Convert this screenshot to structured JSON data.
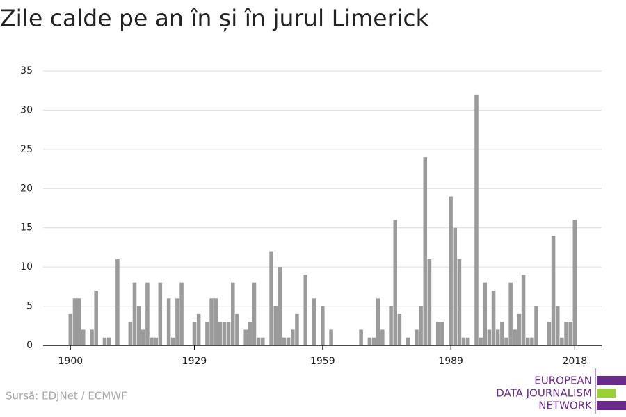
{
  "chart_data": {
    "type": "bar",
    "title": "Zile calde pe an în și în jurul Limerick",
    "source": "Sursă: EDJNet / ECMWF",
    "logo": [
      "EUROPEAN",
      "DATA JOURNALISM",
      "NETWORK"
    ],
    "color": "#9b9b9b",
    "grid": true,
    "x": [
      1900,
      1901,
      1902,
      1903,
      1904,
      1905,
      1906,
      1907,
      1908,
      1909,
      1910,
      1911,
      1912,
      1913,
      1914,
      1915,
      1916,
      1917,
      1918,
      1919,
      1920,
      1921,
      1922,
      1923,
      1924,
      1925,
      1926,
      1927,
      1928,
      1929,
      1930,
      1931,
      1932,
      1933,
      1934,
      1935,
      1936,
      1937,
      1938,
      1939,
      1940,
      1941,
      1942,
      1943,
      1944,
      1945,
      1946,
      1947,
      1948,
      1949,
      1950,
      1951,
      1952,
      1953,
      1954,
      1955,
      1956,
      1957,
      1958,
      1959,
      1960,
      1961,
      1962,
      1963,
      1964,
      1965,
      1966,
      1967,
      1968,
      1969,
      1970,
      1971,
      1972,
      1973,
      1974,
      1975,
      1976,
      1977,
      1978,
      1979,
      1980,
      1981,
      1982,
      1983,
      1984,
      1985,
      1986,
      1987,
      1988,
      1989,
      1990,
      1991,
      1992,
      1993,
      1994,
      1995,
      1996,
      1997,
      1998,
      1999,
      2000,
      2001,
      2002,
      2003,
      2004,
      2005,
      2006,
      2007,
      2008,
      2009,
      2010,
      2011,
      2012,
      2013,
      2014,
      2015,
      2016,
      2017,
      2018
    ],
    "values": [
      4,
      6,
      6,
      2,
      0,
      2,
      7,
      0,
      1,
      1,
      0,
      11,
      0,
      0,
      3,
      8,
      5,
      2,
      8,
      1,
      1,
      8,
      0,
      6,
      1,
      6,
      8,
      0,
      0,
      3,
      4,
      0,
      3,
      6,
      6,
      3,
      3,
      3,
      8,
      4,
      0,
      2,
      3,
      8,
      1,
      1,
      0,
      12,
      5,
      10,
      1,
      1,
      2,
      4,
      0,
      9,
      0,
      6,
      0,
      5,
      0,
      2,
      0,
      0,
      0,
      0,
      0,
      0,
      2,
      0,
      1,
      1,
      6,
      2,
      0,
      5,
      16,
      4,
      0,
      1,
      0,
      2,
      5,
      24,
      11,
      0,
      3,
      3,
      0,
      19,
      15,
      11,
      1,
      1,
      0,
      32,
      1,
      8,
      2,
      7,
      2,
      3,
      1,
      8,
      2,
      4,
      9,
      1,
      1,
      5,
      0,
      0,
      3,
      14,
      5,
      1,
      3,
      3,
      16
    ],
    "xlim": [
      1893.6,
      2024.3
    ],
    "xticks": [
      1900,
      1929,
      1959,
      1989,
      2018
    ],
    "ylim": [
      0,
      35
    ],
    "yticks": [
      0,
      5,
      10,
      15,
      20,
      25,
      30,
      35
    ]
  }
}
